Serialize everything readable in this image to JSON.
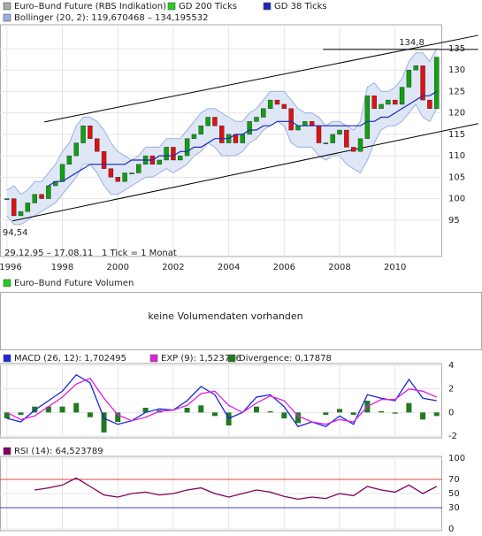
{
  "chart_data": [
    {
      "type": "candlestick",
      "legend": [
        {
          "name": "Euro–Bund Future (RBS Indikation)",
          "color": "#a8a8a8"
        },
        {
          "name": "GD 200 Ticks",
          "color": "#22cc22"
        },
        {
          "name": "GD 38 Ticks",
          "color": "#1a28b8"
        }
      ],
      "x": [
        1996.0,
        1996.25,
        1996.5,
        1996.75,
        1997.0,
        1997.25,
        1997.5,
        1997.75,
        1998.0,
        1998.25,
        1998.5,
        1998.75,
        1999.0,
        1999.25,
        1999.5,
        1999.75,
        2000.0,
        2000.25,
        2000.5,
        2000.75,
        2001.0,
        2001.25,
        2001.5,
        2001.75,
        2002.0,
        2002.25,
        2002.5,
        2002.75,
        2003.0,
        2003.25,
        2003.5,
        2003.75,
        2004.0,
        2004.25,
        2004.5,
        2004.75,
        2005.0,
        2005.25,
        2005.5,
        2005.75,
        2006.0,
        2006.25,
        2006.5,
        2006.75,
        2007.0,
        2007.25,
        2007.5,
        2007.75,
        2008.0,
        2008.25,
        2008.5,
        2008.75,
        2009.0,
        2009.25,
        2009.5,
        2009.75,
        2010.0,
        2010.25,
        2010.5,
        2010.75,
        2011.0,
        2011.25,
        2011.5
      ],
      "close": [
        100,
        96,
        97,
        99,
        101,
        100,
        103,
        104,
        108,
        110,
        113,
        117,
        114,
        111,
        107,
        105,
        104,
        106,
        106,
        108,
        110,
        108,
        109,
        112,
        109,
        110,
        114,
        115,
        117,
        119,
        117,
        113,
        115,
        113,
        115,
        118,
        119,
        121,
        123,
        122,
        121,
        116,
        117,
        118,
        117,
        113,
        113,
        115,
        116,
        112,
        111,
        114,
        124,
        121,
        122,
        123,
        122,
        126,
        130,
        131,
        123,
        121,
        133
      ],
      "up_color": "#10a010",
      "down_color": "#e01010",
      "bollinger": {
        "label": "Bollinger (20, 2): 119,670468 – 134,195532",
        "color": "#9ab0e0",
        "fill": "#dfe7f7",
        "upper": [
          102,
          103,
          101,
          102,
          104,
          104,
          106,
          108,
          111,
          113,
          117,
          119,
          119,
          118,
          116,
          113,
          111,
          110,
          109,
          110,
          112,
          112,
          112,
          114,
          114,
          114,
          116,
          118,
          120,
          121,
          121,
          120,
          119,
          118,
          118,
          120,
          121,
          123,
          125,
          125,
          125,
          123,
          121,
          120,
          120,
          119,
          117,
          118,
          118,
          117,
          116,
          118,
          126,
          127,
          125,
          125,
          126,
          128,
          132,
          134,
          134,
          132,
          135
        ],
        "lower": [
          96,
          94,
          94,
          95,
          96,
          97,
          98,
          99,
          101,
          103,
          105,
          108,
          108,
          106,
          103,
          101,
          101,
          102,
          103,
          104,
          105,
          105,
          106,
          107,
          106,
          107,
          108,
          110,
          111,
          113,
          112,
          110,
          110,
          110,
          111,
          113,
          114,
          116,
          117,
          118,
          117,
          113,
          112,
          112,
          112,
          110,
          109,
          110,
          110,
          108,
          107,
          106,
          109,
          113,
          116,
          117,
          117,
          118,
          120,
          122,
          119,
          118,
          121
        ]
      },
      "ma38": {
        "color": "#1a28b8",
        "values": [
          null,
          null,
          null,
          null,
          null,
          null,
          103,
          104,
          104,
          105,
          106,
          107,
          108,
          108,
          108,
          108,
          108,
          108,
          109,
          109,
          109,
          109,
          110,
          110,
          110,
          111,
          111,
          112,
          112,
          113,
          114,
          114,
          114,
          115,
          115,
          116,
          116,
          117,
          117,
          118,
          118,
          118,
          117,
          117,
          117,
          117,
          117,
          117,
          117,
          117,
          117,
          117,
          118,
          118,
          119,
          119,
          120,
          121,
          122,
          123,
          124,
          124,
          125
        ]
      },
      "trendlines": [
        {
          "x": [
            1997.35,
            2013.0
          ],
          "y": [
            117.9,
            138.1
          ]
        },
        {
          "x": [
            1996.2,
            2013.0
          ],
          "y": [
            94.8,
            117.5
          ]
        },
        {
          "x": [
            2007.4,
            2013.0
          ],
          "y": [
            134.8,
            134.8
          ]
        }
      ],
      "annotations": [
        {
          "text": "134,8",
          "x": 2010.6,
          "y": 134.8
        },
        {
          "text": "94,54",
          "x": 1996.3,
          "y": 94.54
        }
      ],
      "footnotes": [
        "29.12.95 – 17.08.11",
        "1 Tick = 1 Monat"
      ],
      "xlim": [
        1995.75,
        2011.7
      ],
      "xticks": [
        1996,
        1998,
        2000,
        2002,
        2004,
        2006,
        2008,
        2010
      ],
      "ylim": [
        86.5,
        140.15
      ],
      "yticks": [
        95,
        100,
        105,
        110,
        115,
        120,
        125,
        130,
        135
      ],
      "grid": true
    },
    {
      "type": "empty",
      "title": "Euro–Bund Future Volumen",
      "color": "#22cc22",
      "message": "keine Volumendaten vorhanden"
    },
    {
      "type": "line",
      "x": [
        1996.0,
        1996.5,
        1997.0,
        1997.5,
        1998.0,
        1998.5,
        1999.0,
        1999.5,
        2000.0,
        2000.5,
        2001.0,
        2001.5,
        2002.0,
        2002.5,
        2003.0,
        2003.5,
        2004.0,
        2004.5,
        2005.0,
        2005.5,
        2006.0,
        2006.5,
        2007.0,
        2007.5,
        2008.0,
        2008.5,
        2009.0,
        2009.5,
        2010.0,
        2010.5,
        2011.0,
        2011.5
      ],
      "series": [
        {
          "name": "MACD (26, 12): 1,702495",
          "color": "#1a28d8",
          "style": "line",
          "values": [
            -0.5,
            -0.8,
            0.2,
            1.0,
            1.8,
            3.2,
            2.5,
            -0.5,
            -1.0,
            -0.7,
            0.0,
            0.3,
            0.2,
            1.0,
            2.2,
            1.5,
            -0.5,
            0.0,
            1.3,
            1.5,
            0.5,
            -1.2,
            -0.8,
            -1.2,
            -0.3,
            -1.0,
            1.5,
            1.2,
            1.0,
            2.8,
            1.2,
            1.0
          ]
        },
        {
          "name": "EXP (9): 1,523716",
          "color": "#e020e0",
          "style": "line",
          "values": [
            0,
            -0.6,
            -0.3,
            0.5,
            1.3,
            2.4,
            2.9,
            1.2,
            -0.2,
            -0.7,
            -0.4,
            0.1,
            0.2,
            0.6,
            1.6,
            1.8,
            0.6,
            0.0,
            0.8,
            1.4,
            1.0,
            -0.3,
            -0.8,
            -1.0,
            -0.6,
            -0.8,
            0.5,
            1.1,
            1.1,
            2.0,
            1.8,
            1.3
          ]
        },
        {
          "name": "Divergence: 0,17878",
          "color": "#207a20",
          "style": "bar",
          "values": [
            -0.5,
            -0.2,
            0.5,
            0.5,
            0.5,
            0.8,
            -0.4,
            -1.7,
            -0.8,
            0,
            0.4,
            0.2,
            0,
            0.4,
            0.6,
            -0.3,
            -1.1,
            0,
            0.5,
            0.1,
            -0.5,
            -0.9,
            0,
            -0.2,
            0.3,
            -0.2,
            1.0,
            0.1,
            -0.1,
            0.8,
            -0.6,
            -0.3
          ]
        }
      ],
      "ylim": [
        -2,
        4
      ],
      "yticks": [
        -2,
        0,
        2,
        4
      ]
    },
    {
      "type": "line",
      "x": [
        1996.0,
        1996.5,
        1997.0,
        1997.5,
        1998.0,
        1998.5,
        1999.0,
        1999.5,
        2000.0,
        2000.5,
        2001.0,
        2001.5,
        2002.0,
        2002.5,
        2003.0,
        2003.5,
        2004.0,
        2004.5,
        2005.0,
        2005.5,
        2006.0,
        2006.5,
        2007.0,
        2007.5,
        2008.0,
        2008.5,
        2009.0,
        2009.5,
        2010.0,
        2010.5,
        2011.0,
        2011.5
      ],
      "series": [
        {
          "name": "RSI (14): 64,523789",
          "color": "#800060",
          "style": "line",
          "values": [
            null,
            null,
            55,
            58,
            62,
            72,
            60,
            48,
            45,
            50,
            52,
            48,
            50,
            55,
            58,
            50,
            45,
            50,
            55,
            52,
            46,
            42,
            45,
            43,
            50,
            47,
            60,
            55,
            52,
            62,
            50,
            60
          ]
        }
      ],
      "ylim": [
        0,
        100
      ],
      "yticks": [
        0,
        30,
        50,
        70,
        100
      ],
      "ref_line_colors": [
        null,
        "#4040c0",
        null,
        "#e04040",
        null
      ]
    }
  ]
}
